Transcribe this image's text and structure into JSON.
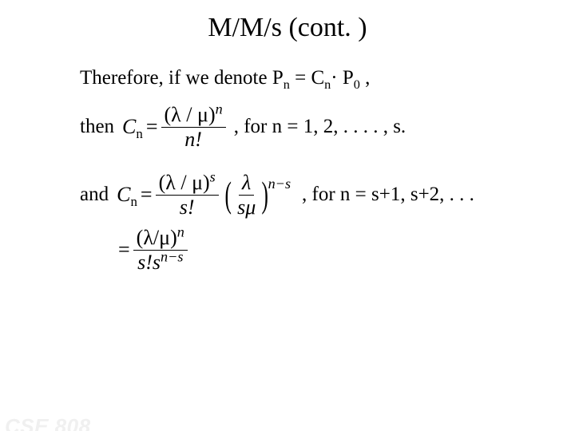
{
  "title": "M/M/s  (cont. )",
  "line1_a": "Therefore, if we denote P",
  "line1_b": " = C",
  "line1_c": "· P",
  "line1_d": " ,",
  "sub_n": "n",
  "sub_0": "0",
  "then": "then",
  "and": "and",
  "Cn_eq": "C",
  "eq_sym": "=",
  "lam_mu": "(λ / μ)",
  "lam_mu_tight": "(λ/μ)",
  "nfact": "n!",
  "sfact": "s!",
  "lambda": "λ",
  "smu": "sμ",
  "exp_n": "n",
  "exp_s": "s",
  "exp_ns": "n−s",
  "den_combined": "s!s",
  "for1": ",  for n = 1, 2, . . . . , s.",
  "for2": ", for n = s+1, s+2, . . .",
  "footer": "CSE 808",
  "colors": {
    "text": "#000000",
    "bg": "#ffffff",
    "footer": "#f0f0f0"
  }
}
